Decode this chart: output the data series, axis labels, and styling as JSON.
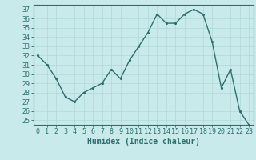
{
  "x": [
    0,
    1,
    2,
    3,
    4,
    5,
    6,
    7,
    8,
    9,
    10,
    11,
    12,
    13,
    14,
    15,
    16,
    17,
    18,
    19,
    20,
    21,
    22,
    23
  ],
  "y": [
    32,
    31,
    29.5,
    27.5,
    27,
    28,
    28.5,
    29,
    30.5,
    29.5,
    31.5,
    33,
    34.5,
    36.5,
    35.5,
    35.5,
    36.5,
    37,
    36.5,
    33.5,
    28.5,
    30.5,
    26,
    24.5
  ],
  "line_color": "#2e6e6e",
  "marker_color": "#2e6e6e",
  "bg_color": "#c8eaea",
  "grid_color": "#b0d8d8",
  "xlabel": "Humidex (Indice chaleur)",
  "ylim": [
    24.5,
    37.5
  ],
  "xlim": [
    -0.5,
    23.5
  ],
  "yticks": [
    25,
    26,
    27,
    28,
    29,
    30,
    31,
    32,
    33,
    34,
    35,
    36,
    37
  ],
  "xticks": [
    0,
    1,
    2,
    3,
    4,
    5,
    6,
    7,
    8,
    9,
    10,
    11,
    12,
    13,
    14,
    15,
    16,
    17,
    18,
    19,
    20,
    21,
    22,
    23
  ],
  "xlabel_fontsize": 7,
  "tick_fontsize": 6,
  "marker_size": 2.5,
  "line_width": 1.0
}
